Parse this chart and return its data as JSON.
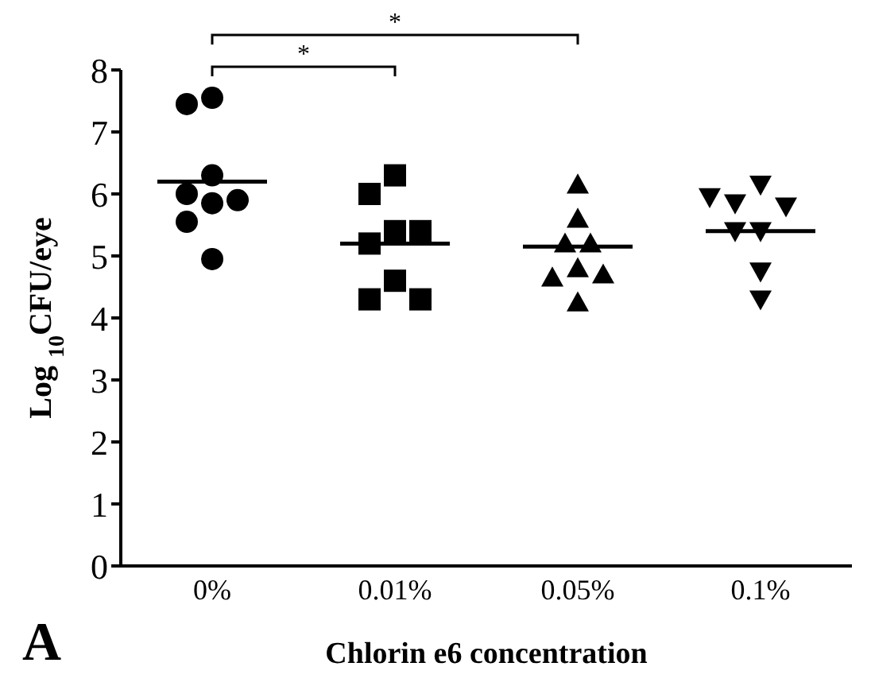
{
  "chart_data": {
    "type": "scatter",
    "xlabel": "Chlorin e6 concentration",
    "ylabel": "Log $_{10}$CFU/eye",
    "categories": [
      "0%",
      "0.01%",
      "0.05%",
      "0.1%"
    ],
    "ylim": [
      0,
      8
    ],
    "yticks": [
      0,
      1,
      2,
      3,
      4,
      5,
      6,
      7,
      8
    ],
    "grid": false,
    "legend": false,
    "series": [
      {
        "marker": "circle",
        "color": "#000000",
        "x": [
          "0%",
          "0%",
          "0%",
          "0%",
          "0%",
          "0%",
          "0%",
          "0%"
        ],
        "values": [
          7.55,
          7.45,
          6.3,
          6.0,
          5.85,
          5.9,
          5.55,
          4.95
        ]
      },
      {
        "marker": "square",
        "color": "#000000",
        "x": [
          "0.01%",
          "0.01%",
          "0.01%",
          "0.01%",
          "0.01%",
          "0.01%",
          "0.01%",
          "0.01%"
        ],
        "values": [
          6.3,
          6.0,
          5.4,
          5.2,
          5.4,
          4.6,
          4.3,
          4.3
        ]
      },
      {
        "marker": "triangle",
        "color": "#000000",
        "x": [
          "0.05%",
          "0.05%",
          "0.05%",
          "0.05%",
          "0.05%",
          "0.05%",
          "0.05%",
          "0.05%"
        ],
        "values": [
          6.15,
          5.6,
          5.2,
          5.2,
          4.8,
          4.65,
          4.7,
          4.25
        ]
      },
      {
        "marker": "triangle-down",
        "color": "#000000",
        "x": [
          "0.1%",
          "0.1%",
          "0.1%",
          "0.1%",
          "0.1%",
          "0.1%",
          "0.1%",
          "0.1%"
        ],
        "values": [
          6.15,
          5.85,
          5.8,
          5.95,
          5.4,
          5.4,
          4.75,
          4.3
        ]
      },
      {
        "type": "box",
        "color": "#000000",
        "boxes": [
          {
            "low": 6.2,
            "q1": 6.2,
            "median": 6.2,
            "q3": 6.2,
            "high": 6.2
          },
          {
            "low": 5.2,
            "q1": 5.2,
            "median": 5.2,
            "q3": 5.2,
            "high": 5.2
          },
          {
            "low": 5.15,
            "q1": 5.15,
            "median": 5.15,
            "q3": 5.15,
            "high": 5.15
          },
          {
            "low": 5.4,
            "q1": 5.4,
            "median": 5.4,
            "q3": 5.4,
            "high": 5.4
          }
        ]
      }
    ],
    "annotations": [
      "*",
      "*",
      "A"
    ]
  }
}
